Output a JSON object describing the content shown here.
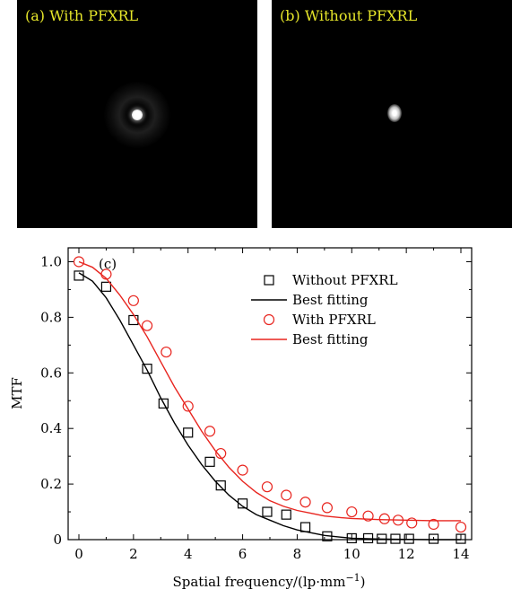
{
  "panels": {
    "a_label": "(a) With PFXRL",
    "b_label": "(b) Without PFXRL",
    "label_color": "#e6e62a"
  },
  "chart_data": {
    "type": "scatter",
    "panel_label": "(c)",
    "xlabel": "Spatial frequency/(lp·mm⁻¹)",
    "ylabel": "MTF",
    "xlim": [
      0,
      14
    ],
    "ylim": [
      0,
      1.05
    ],
    "xticks": [
      0,
      2,
      4,
      6,
      8,
      10,
      12,
      14
    ],
    "yticks": [
      0,
      0.2,
      0.4,
      0.6,
      0.8,
      1.0
    ],
    "xtick_labels": [
      "0",
      "2",
      "4",
      "6",
      "8",
      "10",
      "12",
      "14"
    ],
    "ytick_labels": [
      "0",
      "0.2",
      "0.4",
      "0.6",
      "0.8",
      "1.0"
    ],
    "legend_position": "top-right",
    "series": [
      {
        "name": "Without PFXRL",
        "marker": "square",
        "color": "#000000",
        "x": [
          0,
          1,
          2,
          2.5,
          3.1,
          4,
          4.8,
          5.2,
          6,
          6.9,
          7.6,
          8.3,
          9.1,
          10,
          10.6,
          11.1,
          11.6,
          12.1,
          13,
          14
        ],
        "y": [
          0.95,
          0.91,
          0.79,
          0.615,
          0.49,
          0.385,
          0.28,
          0.195,
          0.13,
          0.1,
          0.09,
          0.045,
          0.012,
          0.005,
          0.005,
          0.003,
          0.003,
          0.003,
          0.003,
          0.003
        ]
      },
      {
        "name": "Best fitting",
        "line": true,
        "color": "#000000",
        "x": [
          0,
          0.5,
          1,
          1.5,
          2,
          2.5,
          3,
          3.5,
          4,
          4.5,
          5,
          5.5,
          6,
          6.5,
          7,
          7.5,
          8,
          8.5,
          9,
          9.5,
          10,
          11,
          12,
          13,
          14
        ],
        "y": [
          0.96,
          0.93,
          0.87,
          0.79,
          0.7,
          0.61,
          0.51,
          0.42,
          0.34,
          0.27,
          0.21,
          0.16,
          0.12,
          0.09,
          0.07,
          0.05,
          0.035,
          0.025,
          0.015,
          0.01,
          0.005,
          0.002,
          0.001,
          0.0,
          0.0
        ]
      },
      {
        "name": "With PFXRL",
        "marker": "circle",
        "color": "#e8251f",
        "x": [
          0,
          1,
          2,
          2.5,
          3.2,
          4,
          4.8,
          5.2,
          6,
          6.9,
          7.6,
          8.3,
          9.1,
          10,
          10.6,
          11.2,
          11.7,
          12.2,
          13,
          14
        ],
        "y": [
          1.0,
          0.955,
          0.86,
          0.77,
          0.675,
          0.48,
          0.39,
          0.31,
          0.25,
          0.19,
          0.16,
          0.135,
          0.115,
          0.1,
          0.085,
          0.075,
          0.07,
          0.06,
          0.055,
          0.045
        ]
      },
      {
        "name": "Best fitting",
        "line": true,
        "color": "#e8251f",
        "x": [
          0,
          0.5,
          1,
          1.5,
          2,
          2.5,
          3,
          3.5,
          4,
          4.5,
          5,
          5.5,
          6,
          6.5,
          7,
          7.5,
          8,
          8.5,
          9,
          9.5,
          10,
          11,
          12,
          13,
          14
        ],
        "y": [
          1.0,
          0.98,
          0.94,
          0.88,
          0.81,
          0.73,
          0.64,
          0.55,
          0.47,
          0.39,
          0.32,
          0.26,
          0.21,
          0.17,
          0.14,
          0.12,
          0.105,
          0.095,
          0.085,
          0.08,
          0.076,
          0.072,
          0.07,
          0.068,
          0.068
        ]
      }
    ]
  }
}
